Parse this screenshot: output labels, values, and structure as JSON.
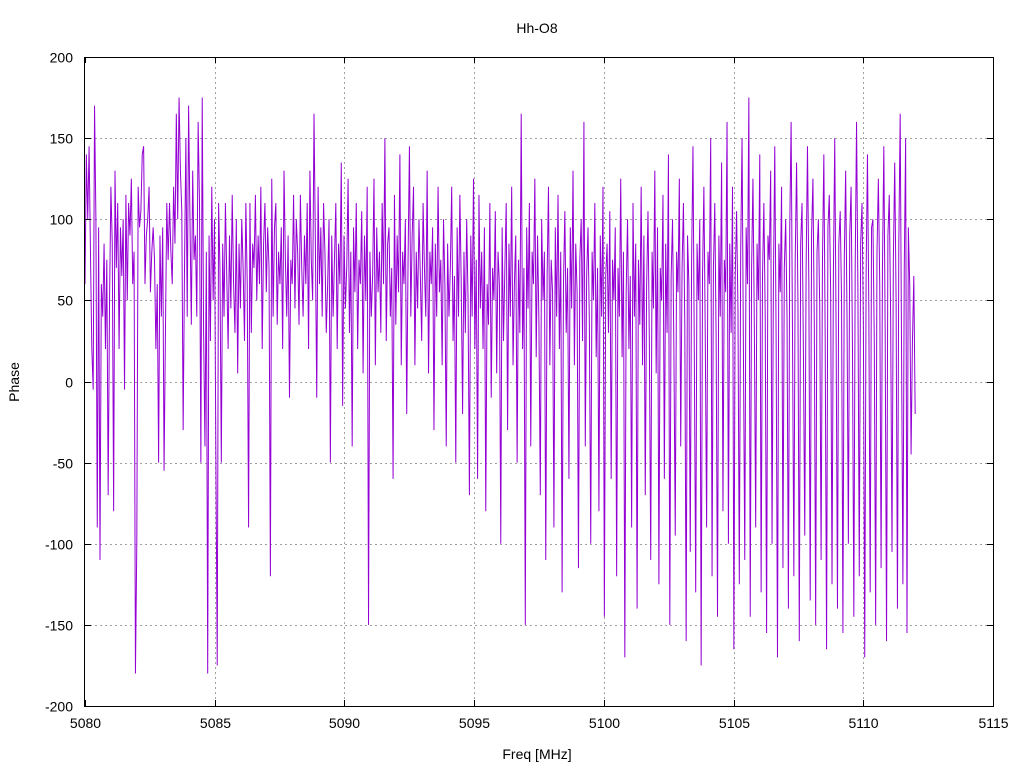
{
  "chart_data": {
    "type": "line",
    "title": "Hh-O8",
    "xlabel": "Freq [MHz]",
    "ylabel": "Phase",
    "xlim": [
      5080,
      5115
    ],
    "ylim": [
      -200,
      200
    ],
    "x_ticks": [
      5080,
      5085,
      5090,
      5095,
      5100,
      5105,
      5110,
      5115
    ],
    "y_ticks": [
      -200,
      -150,
      -100,
      -50,
      0,
      50,
      100,
      150,
      200
    ],
    "grid": true,
    "line_color": "#9400d3",
    "x_start": 5080,
    "x_end": 5112,
    "series": [
      {
        "values": [
          60,
          140,
          100,
          145,
          80,
          20,
          -5,
          170,
          100,
          -90,
          95,
          -110,
          60,
          40,
          85,
          20,
          75,
          -70,
          50,
          120,
          85,
          -80,
          130,
          70,
          110,
          20,
          95,
          65,
          100,
          -5,
          115,
          50,
          110,
          90,
          125,
          60,
          80,
          -180,
          -100,
          120,
          95,
          105,
          140,
          145,
          60,
          90,
          100,
          120,
          55,
          80,
          95,
          75,
          20,
          60,
          -50,
          90,
          40,
          95,
          -55,
          30,
          110,
          75,
          110,
          80,
          60,
          120,
          85,
          165,
          100,
          175,
          130,
          105,
          -30,
          70,
          150,
          40,
          170,
          100,
          35,
          130,
          75,
          90,
          40,
          160,
          110,
          -50,
          175,
          30,
          -40,
          80,
          -180,
          90,
          25,
          120,
          50,
          100,
          -45,
          -175,
          110,
          70,
          -50,
          85,
          40,
          110,
          65,
          20,
          90,
          45,
          115,
          60,
          30,
          100,
          5,
          85,
          45,
          100,
          70,
          25,
          110,
          60,
          -90,
          110,
          30,
          85,
          70,
          115,
          50,
          90,
          60,
          120,
          20,
          85,
          110,
          55,
          95,
          70,
          -120,
          125,
          40,
          95,
          110,
          35,
          80,
          60,
          95,
          20,
          130,
          75,
          40,
          90,
          -10,
          75,
          60,
          115,
          45,
          100,
          80,
          35,
          115,
          70,
          40,
          90,
          60,
          110,
          20,
          130,
          75,
          50,
          165,
          85,
          -10,
          120,
          60,
          95,
          40,
          110,
          80,
          30,
          60,
          100,
          -50,
          90,
          40,
          75,
          110,
          20,
          85,
          60,
          135,
          -15,
          90,
          45,
          70,
          125,
          30,
          80,
          -40,
          95,
          55,
          110,
          20,
          75,
          60,
          105,
          5,
          90,
          50,
          120,
          -150,
          80,
          40,
          65,
          125,
          10,
          95,
          55,
          80,
          30,
          110,
          60,
          150,
          25,
          85,
          95,
          40,
          70,
          -60,
          115,
          35,
          90,
          55,
          140,
          10,
          80,
          60,
          100,
          -20,
          75,
          145,
          40,
          90,
          120,
          10,
          80,
          45,
          100,
          65,
          25,
          110,
          70,
          40,
          130,
          5,
          80,
          60,
          95,
          -30,
          85,
          40,
          120,
          55,
          75,
          10,
          100,
          60,
          -40,
          85,
          40,
          70,
          120,
          25,
          65,
          -50,
          95,
          40,
          115,
          60,
          -20,
          80,
          30,
          100,
          50,
          -70,
          90,
          40,
          125,
          20,
          75,
          -60,
          115,
          45,
          80,
          20,
          95,
          -80,
          60,
          35,
          110,
          -10,
          70,
          50,
          105,
          5,
          80,
          60,
          -100,
          95,
          25,
          70,
          110,
          -30,
          85,
          40,
          120,
          10,
          60,
          90,
          -50,
          75,
          30,
          165,
          20,
          70,
          -150,
          95,
          45,
          110,
          -40,
          80,
          60,
          125,
          15,
          90,
          35,
          -70,
          100,
          50,
          80,
          -110,
          65,
          120,
          10,
          75,
          55,
          -90,
          95,
          40,
          115,
          20,
          80,
          -130,
          60,
          105,
          30,
          70,
          -60,
          95,
          45,
          130,
          10,
          85,
          55,
          -115,
          75,
          100,
          25,
          160,
          -40,
          65,
          95,
          35,
          -100,
          80,
          50,
          110,
          15,
          70,
          -80,
          90,
          40,
          120,
          -145,
          65,
          85,
          30,
          105,
          -60,
          75,
          50,
          95,
          -120,
          70,
          40,
          125,
          15,
          80,
          -170,
          55,
          100,
          20,
          65,
          -90,
          110,
          40,
          85,
          -140,
          75,
          35,
          120,
          10,
          90,
          -70,
          60,
          105,
          25,
          -110,
          80,
          45,
          130,
          5,
          95,
          -125,
          70,
          50,
          115,
          -60,
          85,
          30,
          140,
          -150,
          65,
          100,
          20,
          -95,
          80,
          55,
          125,
          -40,
          70,
          110,
          35,
          -160,
          90,
          60,
          -105,
          75,
          145,
          15,
          -130,
          85,
          50,
          100,
          -175,
          65,
          120,
          30,
          -90,
          80,
          60,
          150,
          -120,
          70,
          110,
          25,
          -145,
          90,
          40,
          135,
          -80,
          75,
          55,
          160,
          -100,
          85,
          30,
          120,
          -165,
          65,
          105,
          45,
          -125,
          80,
          150,
          20,
          -110,
          95,
          60,
          175,
          -145,
          70,
          125,
          35,
          -90,
          85,
          50,
          140,
          -130,
          65,
          110,
          40,
          -155,
          90,
          75,
          130,
          -100,
          60,
          145,
          25,
          -170,
          85,
          55,
          120,
          -115,
          70,
          100,
          40,
          -140,
          95,
          160,
          30,
          -120,
          75,
          135,
          50,
          -160,
          85,
          110,
          20,
          -95,
          70,
          145,
          60,
          -135,
          90,
          125,
          35,
          -150,
          80,
          100,
          45,
          -110,
          75,
          140,
          25,
          -165,
          95,
          115,
          55,
          -125,
          65,
          150,
          30,
          -140,
          85,
          105,
          50,
          -155,
          75,
          130,
          40,
          -100,
          90,
          120,
          20,
          -145,
          70,
          160,
          55,
          -120,
          85,
          110,
          35,
          -170,
          65,
          140,
          45,
          -130,
          95,
          100,
          25,
          -150,
          80,
          125,
          60,
          -115,
          70,
          145,
          30,
          -160,
          90,
          115,
          40,
          -105,
          75,
          135,
          50,
          -140,
          85,
          165,
          20,
          -125,
          70,
          150,
          -155,
          95,
          60,
          -45,
          25,
          65,
          -20
        ]
      }
    ]
  }
}
